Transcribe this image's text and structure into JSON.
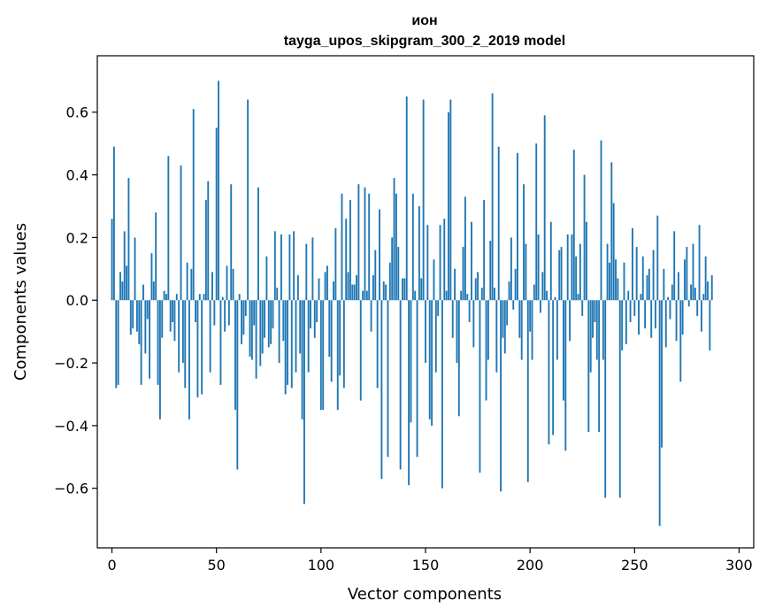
{
  "chart_data": {
    "type": "bar",
    "title": "ион",
    "subtitle": "tayga_upos_skipgram_300_2_2019 model",
    "xlabel": "Vector components",
    "ylabel": "Components values",
    "xlim": [
      -7,
      307
    ],
    "ylim": [
      -0.79,
      0.78
    ],
    "xticks": [
      0,
      50,
      100,
      150,
      200,
      250,
      300
    ],
    "xtick_labels": [
      "0",
      "50",
      "100",
      "150",
      "200",
      "250",
      "300"
    ],
    "yticks": [
      -0.6,
      -0.4,
      -0.2,
      0.0,
      0.2,
      0.4,
      0.6
    ],
    "ytick_labels": [
      "−0.6",
      "−0.4",
      "−0.2",
      "0.0",
      "0.2",
      "0.4",
      "0.6"
    ],
    "grid": false,
    "bar_color": "#1f77b4",
    "values": [
      0.26,
      0.49,
      -0.28,
      -0.27,
      0.09,
      0.06,
      0.22,
      0.11,
      0.39,
      -0.11,
      -0.09,
      0.2,
      -0.1,
      -0.14,
      -0.27,
      0.05,
      -0.17,
      -0.06,
      -0.25,
      0.15,
      0.06,
      0.28,
      -0.27,
      -0.38,
      -0.12,
      0.03,
      0.02,
      0.46,
      -0.1,
      -0.07,
      -0.13,
      0.02,
      -0.23,
      0.43,
      -0.2,
      -0.28,
      0.12,
      -0.38,
      0.1,
      0.61,
      -0.07,
      -0.31,
      0.02,
      -0.3,
      0.02,
      0.32,
      0.38,
      -0.23,
      0.09,
      -0.08,
      0.55,
      0.7,
      -0.27,
      0.01,
      -0.1,
      0.11,
      -0.08,
      0.37,
      0.1,
      -0.35,
      -0.54,
      0.02,
      -0.14,
      -0.11,
      -0.05,
      0.64,
      -0.18,
      -0.19,
      -0.08,
      -0.25,
      0.36,
      -0.21,
      -0.17,
      -0.12,
      0.14,
      -0.15,
      -0.14,
      -0.09,
      0.22,
      0.04,
      -0.2,
      0.21,
      -0.13,
      -0.3,
      -0.27,
      0.21,
      -0.28,
      0.22,
      -0.23,
      0.08,
      -0.17,
      -0.38,
      -0.65,
      0.18,
      -0.23,
      -0.09,
      0.2,
      -0.12,
      -0.07,
      0.07,
      -0.35,
      -0.35,
      0.09,
      0.11,
      -0.18,
      -0.26,
      0.06,
      0.23,
      -0.35,
      -0.24,
      0.34,
      -0.28,
      0.26,
      0.09,
      0.32,
      0.05,
      0.05,
      0.08,
      0.37,
      -0.32,
      0.03,
      0.36,
      0.03,
      0.34,
      -0.1,
      0.08,
      0.16,
      -0.28,
      0.29,
      -0.57,
      0.06,
      0.05,
      -0.5,
      0.12,
      0.2,
      0.39,
      0.34,
      0.17,
      -0.54,
      0.07,
      0.07,
      0.65,
      -0.59,
      -0.39,
      0.34,
      0.03,
      -0.5,
      0.3,
      0.07,
      0.64,
      -0.2,
      0.24,
      -0.38,
      -0.4,
      0.13,
      -0.23,
      -0.05,
      0.24,
      -0.6,
      0.26,
      0.03,
      0.6,
      0.64,
      -0.12,
      0.1,
      -0.2,
      -0.37,
      0.03,
      0.17,
      0.33,
      0.02,
      -0.07,
      0.25,
      -0.15,
      0.07,
      0.09,
      -0.55,
      0.04,
      0.32,
      -0.32,
      -0.19,
      0.19,
      0.66,
      0.04,
      -0.23,
      0.49,
      -0.61,
      -0.12,
      -0.17,
      -0.08,
      0.06,
      0.2,
      -0.03,
      0.1,
      0.47,
      -0.12,
      -0.19,
      0.37,
      0.18,
      -0.58,
      -0.1,
      -0.19,
      0.05,
      0.5,
      0.21,
      -0.04,
      0.09,
      0.59,
      0.03,
      -0.46,
      0.25,
      -0.43,
      0.01,
      -0.19,
      0.16,
      0.17,
      -0.32,
      -0.48,
      0.21,
      -0.13,
      0.21,
      0.48,
      0.14,
      0.02,
      0.18,
      -0.05,
      0.4,
      0.25,
      -0.42,
      -0.23,
      -0.12,
      -0.07,
      -0.19,
      -0.42,
      0.51,
      -0.19,
      -0.63,
      0.18,
      0.12,
      0.44,
      0.31,
      0.13,
      0.07,
      -0.63,
      -0.16,
      0.12,
      -0.14,
      0.03,
      -0.07,
      0.23,
      -0.05,
      0.17,
      -0.11,
      0.02,
      0.14,
      -0.09,
      0.08,
      0.1,
      -0.12,
      0.16,
      -0.09,
      0.27,
      -0.72,
      -0.47,
      0.1,
      -0.15,
      0.01,
      -0.06,
      0.05,
      0.22,
      -0.13,
      0.09,
      -0.26,
      -0.11,
      0.13,
      0.17,
      -0.02,
      0.05,
      0.18,
      0.04,
      -0.05,
      0.24,
      -0.1,
      0.02,
      0.14,
      0.06,
      -0.16,
      0.08
    ]
  }
}
